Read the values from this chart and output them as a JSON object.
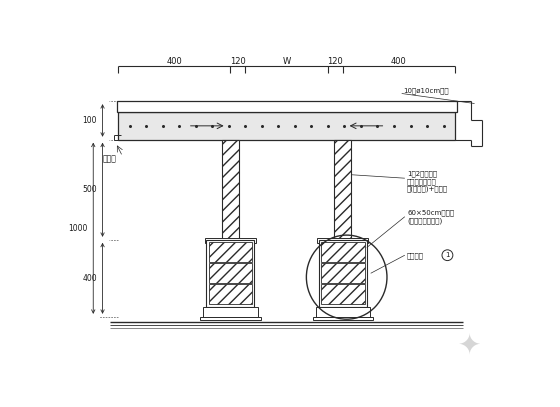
{
  "bg_color": "#ffffff",
  "line_color": "#2a2a2a",
  "text_color": "#1a1a1a",
  "fig_width": 5.6,
  "fig_height": 4.07,
  "dpi": 100,
  "annotations": {
    "top_right": "10个ø10cm角钢",
    "drip_line": "滴水线",
    "right1": "1：2防水粉光",
    "right2": "届任施工砂水泥",
    "right3": "漆(色另定)+防雷型",
    "right4": "60×50cm铝目单",
    "right5": "(附不锈钓防虹网)",
    "bottom_right": "另详拼缝",
    "dim_top": [
      "400",
      "120",
      "W",
      "120",
      "400"
    ],
    "dim_left_100": "100",
    "dim_left_500": "500",
    "dim_left_1000": "1000",
    "dim_left_400": "400"
  },
  "colors": {
    "slab_fill": "#e8e8e8",
    "hatch_fc": "#ffffff",
    "gray_fill": "#d0d0d0"
  }
}
